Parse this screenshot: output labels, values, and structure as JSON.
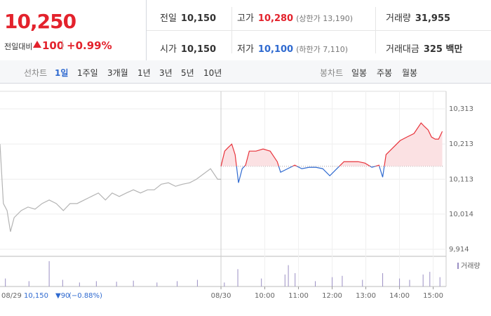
{
  "header": {
    "price": "10,250",
    "change_label": "전일대비",
    "change": "100",
    "change_pct": "+0.99%"
  },
  "stats": [
    {
      "label": "전일",
      "value": "10,150"
    },
    {
      "label": "고가",
      "value": "10,280",
      "note": "(상한가 13,190)"
    },
    {
      "label": "거래량",
      "value": "31,955"
    },
    {
      "label": "시가",
      "value": "10,150"
    },
    {
      "label": "저가",
      "value": "10,100",
      "note": "(하한가 7,110)"
    },
    {
      "label": "거래대금",
      "value": "325 백만"
    }
  ],
  "tabs": {
    "line_label": "선차트",
    "line": [
      "1일",
      "1주일",
      "3개월",
      "1년",
      "3년",
      "5년",
      "10년"
    ],
    "candle_label": "봉차트",
    "candle": [
      "일봉",
      "주봉",
      "월봉"
    ]
  },
  "chart_data": {
    "type": "line",
    "xlim": [
      2.14,
      15.3
    ],
    "ylim": [
      9894,
      10363
    ],
    "xticks": [
      {
        "value": 8.7,
        "label": "08/30"
      },
      {
        "value": 10,
        "label": "10:00"
      },
      {
        "value": 11,
        "label": "11:00"
      },
      {
        "value": 12,
        "label": "12:00"
      },
      {
        "value": 13,
        "label": "13:00"
      },
      {
        "value": 14,
        "label": "14:00"
      },
      {
        "value": 15,
        "label": "15:00"
      }
    ],
    "yticks": [
      {
        "value": 9914,
        "label": "9,914"
      },
      {
        "value": 10014,
        "label": "10,014"
      },
      {
        "value": 10113,
        "label": "10,113"
      },
      {
        "value": 10213,
        "label": "10,213"
      },
      {
        "value": 10313,
        "label": "10,313"
      }
    ],
    "baseline": 10150,
    "grid": true,
    "series": [
      {
        "color": "#b4b4b4",
        "x": [
          2.14,
          2.24,
          2.35,
          2.45,
          2.56,
          2.77,
          2.97,
          3.18,
          3.39,
          3.6,
          3.81,
          4.02,
          4.22,
          4.43,
          4.64,
          4.85,
          5.06,
          5.27,
          5.47,
          5.68,
          5.89,
          6.1,
          6.31,
          6.52,
          6.72,
          6.93,
          7.14,
          7.35,
          7.56,
          7.77,
          7.97,
          8.39,
          8.6,
          8.7
        ],
        "values": [
          10213,
          10044,
          10024,
          9964,
          10004,
          10024,
          10034,
          10028,
          10044,
          10054,
          10044,
          10024,
          10044,
          10044,
          10054,
          10064,
          10074,
          10054,
          10074,
          10064,
          10074,
          10083,
          10074,
          10083,
          10083,
          10099,
          10103,
          10093,
          10099,
          10103,
          10113,
          10143,
          10113,
          10113
        ]
      },
      {
        "color": "#e8333b",
        "down_color": "#2f6ad0",
        "fill": "#fbe1e3",
        "x": [
          8.7,
          8.81,
          8.91,
          9.02,
          9.12,
          9.22,
          9.33,
          9.43,
          9.54,
          9.74,
          9.95,
          10.16,
          10.37,
          10.47,
          10.68,
          10.89,
          11.1,
          11.31,
          11.52,
          11.72,
          11.93,
          12.14,
          12.35,
          12.56,
          12.77,
          12.97,
          13.18,
          13.39,
          13.5,
          13.6,
          13.81,
          14.02,
          14.22,
          14.43,
          14.64,
          14.74,
          14.85,
          14.95,
          15.06,
          15.16,
          15.27
        ],
        "values": [
          10150,
          10193,
          10203,
          10213,
          10183,
          10103,
          10143,
          10153,
          10193,
          10193,
          10199,
          10193,
          10163,
          10133,
          10143,
          10153,
          10143,
          10147,
          10147,
          10143,
          10123,
          10143,
          10163,
          10163,
          10163,
          10159,
          10147,
          10153,
          10119,
          10183,
          10203,
          10223,
          10233,
          10243,
          10273,
          10263,
          10253,
          10233,
          10227,
          10227,
          10249
        ]
      }
    ],
    "volume": {
      "label": "거래량",
      "ylim": [
        0,
        100
      ],
      "color": "#9a8fc4",
      "x": [
        2.3,
        3.0,
        3.6,
        4.0,
        4.5,
        5.0,
        5.6,
        6.1,
        6.8,
        7.4,
        8.0,
        8.8,
        9.2,
        9.9,
        10.6,
        10.7,
        10.9,
        11.5,
        12.0,
        12.3,
        12.9,
        13.5,
        14.0,
        14.3,
        14.7,
        14.9,
        15.2
      ],
      "values": [
        30,
        20,
        95,
        25,
        15,
        20,
        18,
        22,
        15,
        20,
        25,
        15,
        65,
        30,
        45,
        80,
        50,
        20,
        35,
        40,
        25,
        50,
        30,
        25,
        45,
        55,
        35
      ]
    },
    "prev_day": {
      "date": "08/29",
      "close": "10,150",
      "change": "▼90",
      "pct": "(−0.88%)"
    }
  }
}
